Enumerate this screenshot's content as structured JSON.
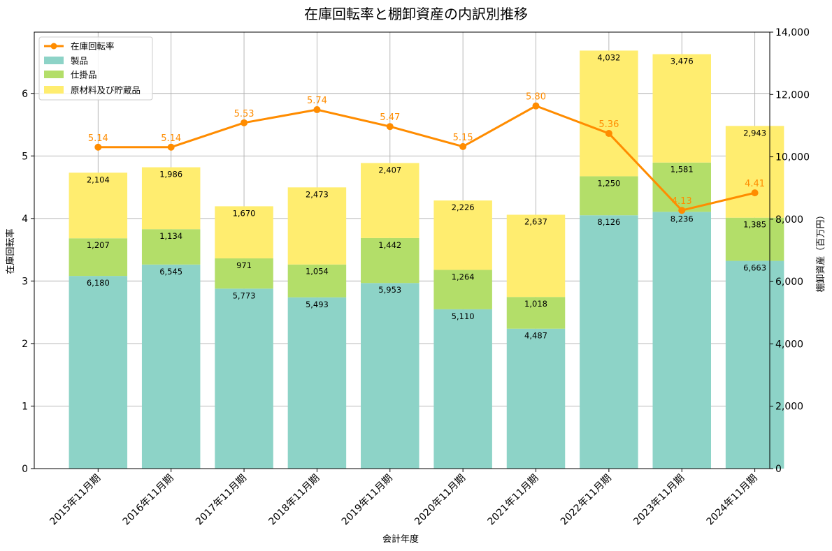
{
  "chart_data": {
    "type": "bar",
    "stacked": true,
    "title": "在庫回転率と棚卸資産の内訳別推移",
    "xlabel": "会計年度",
    "ylabel_left": "在庫回転率",
    "ylabel_right": "棚卸資産（百万円）",
    "categories": [
      "2015年11月期",
      "2016年11月期",
      "2017年11月期",
      "2018年11月期",
      "2019年11月期",
      "2020年11月期",
      "2021年11月期",
      "2022年11月期",
      "2023年11月期",
      "2024年11月期"
    ],
    "series": [
      {
        "name": "製品",
        "color": "#8dd3c7",
        "axis": "right",
        "values": [
          6180,
          6545,
          5773,
          5493,
          5953,
          5110,
          4487,
          8126,
          8236,
          6663
        ],
        "labels": [
          "6,180",
          "6,545",
          "5,773",
          "5,493",
          "5,953",
          "5,110",
          "4,487",
          "8,126",
          "8,236",
          "6,663"
        ]
      },
      {
        "name": "仕掛品",
        "color": "#b3de69",
        "axis": "right",
        "values": [
          1207,
          1134,
          971,
          1054,
          1442,
          1264,
          1018,
          1250,
          1581,
          1385
        ],
        "labels": [
          "1,207",
          "1,134",
          "971",
          "1,054",
          "1,442",
          "1,264",
          "1,018",
          "1,250",
          "1,581",
          "1,385"
        ]
      },
      {
        "name": "原材料及び貯蔵品",
        "color": "#ffed6f",
        "axis": "right",
        "values": [
          2104,
          1986,
          1670,
          2473,
          2407,
          2226,
          2637,
          4032,
          3476,
          2943
        ],
        "labels": [
          "2,104",
          "1,986",
          "1,670",
          "2,473",
          "2,407",
          "2,226",
          "2,637",
          "4,032",
          "3,476",
          "2,943"
        ]
      }
    ],
    "line": {
      "name": "在庫回転率",
      "color": "#ff8c00",
      "axis": "left",
      "values": [
        5.14,
        5.14,
        5.53,
        5.74,
        5.47,
        5.15,
        5.8,
        5.36,
        4.13,
        4.41
      ],
      "labels": [
        "5.14",
        "5.14",
        "5.53",
        "5.74",
        "5.47",
        "5.15",
        "5.80",
        "5.36",
        "4.13",
        "4.41"
      ],
      "plot_values": [
        5.14,
        5.14,
        5.53,
        5.74,
        5.47,
        5.15,
        5.8,
        5.36,
        4.13,
        4.41
      ]
    },
    "ylim_left": [
      0,
      6.98
    ],
    "ylim_right": [
      0,
      14000
    ],
    "yticks_left": [
      0,
      1,
      2,
      3,
      4,
      5,
      6
    ],
    "yticks_left_labels": [
      "0",
      "1",
      "2",
      "3",
      "4",
      "5",
      "6"
    ],
    "yticks_right": [
      0,
      2000,
      4000,
      6000,
      8000,
      10000,
      12000,
      14000
    ],
    "yticks_right_labels": [
      "0",
      "2,000",
      "4,000",
      "6,000",
      "8,000",
      "10,000",
      "12,000",
      "14,000"
    ],
    "grid": true,
    "legend_position": "top-left",
    "legend_entries": [
      "在庫回転率",
      "製品",
      "仕掛品",
      "原材料及び貯蔵品"
    ]
  }
}
